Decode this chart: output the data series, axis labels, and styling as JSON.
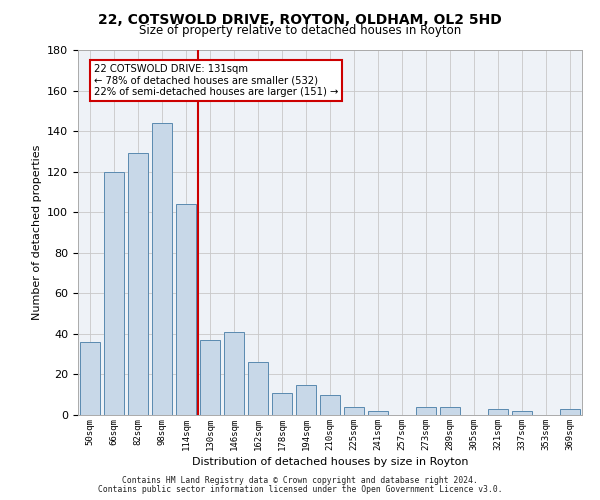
{
  "title_line1": "22, COTSWOLD DRIVE, ROYTON, OLDHAM, OL2 5HD",
  "title_line2": "Size of property relative to detached houses in Royton",
  "xlabel": "Distribution of detached houses by size in Royton",
  "ylabel": "Number of detached properties",
  "bin_labels": [
    "50sqm",
    "66sqm",
    "82sqm",
    "98sqm",
    "114sqm",
    "130sqm",
    "146sqm",
    "162sqm",
    "178sqm",
    "194sqm",
    "210sqm",
    "225sqm",
    "241sqm",
    "257sqm",
    "273sqm",
    "289sqm",
    "305sqm",
    "321sqm",
    "337sqm",
    "353sqm",
    "369sqm"
  ],
  "bar_values": [
    36,
    120,
    129,
    144,
    104,
    37,
    41,
    26,
    11,
    15,
    10,
    4,
    2,
    0,
    4,
    4,
    0,
    3,
    2,
    0,
    3
  ],
  "bar_color": "#c8d8e8",
  "bar_edge_color": "#5a8ab0",
  "vline_color": "#cc0000",
  "annotation_text": "22 COTSWOLD DRIVE: 131sqm\n← 78% of detached houses are smaller (532)\n22% of semi-detached houses are larger (151) →",
  "annotation_box_color": "#ffffff",
  "annotation_box_edge": "#cc0000",
  "ylim": [
    0,
    180
  ],
  "yticks": [
    0,
    20,
    40,
    60,
    80,
    100,
    120,
    140,
    160,
    180
  ],
  "bg_color": "#eef2f7",
  "footer_line1": "Contains HM Land Registry data © Crown copyright and database right 2024.",
  "footer_line2": "Contains public sector information licensed under the Open Government Licence v3.0."
}
